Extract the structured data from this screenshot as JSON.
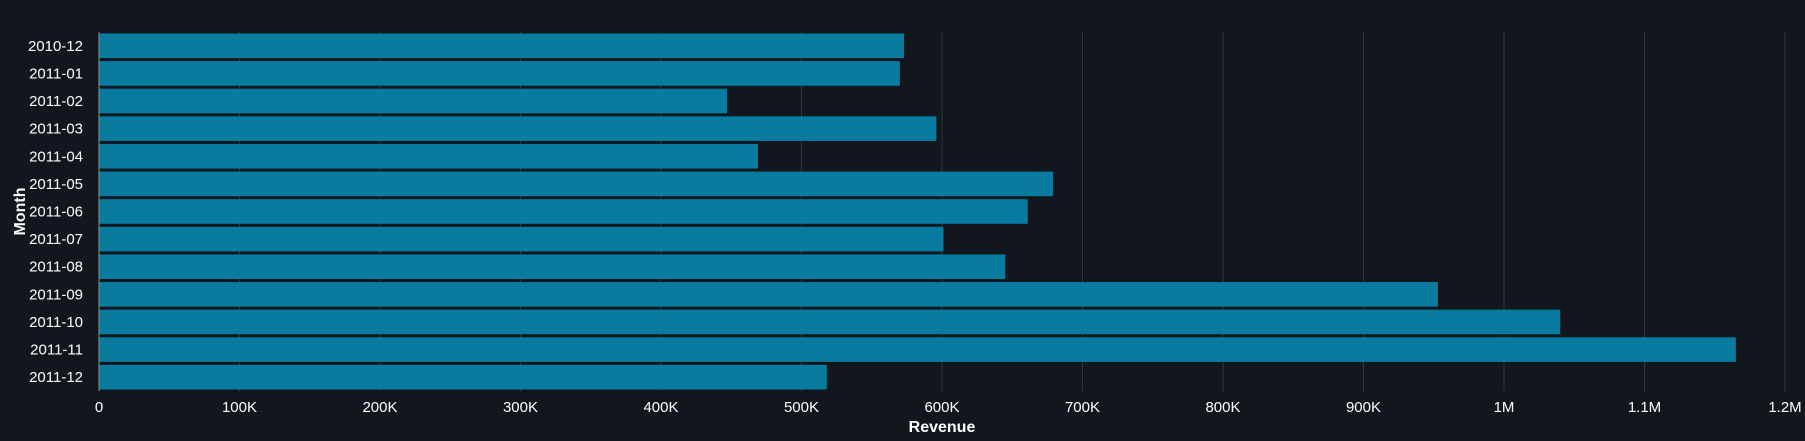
{
  "chart_data": {
    "type": "bar",
    "orientation": "horizontal",
    "categories": [
      "2010-12",
      "2011-01",
      "2011-02",
      "2011-03",
      "2011-04",
      "2011-05",
      "2011-06",
      "2011-07",
      "2011-08",
      "2011-09",
      "2011-10",
      "2011-11",
      "2011-12"
    ],
    "values": [
      573000,
      570000,
      447000,
      596000,
      469000,
      679000,
      661000,
      601000,
      645000,
      953000,
      1040000,
      1165000,
      518000
    ],
    "xlabel": "Revenue",
    "ylabel": "Month",
    "xlim": [
      0,
      1200000
    ],
    "x_ticks": [
      0,
      100000,
      200000,
      300000,
      400000,
      500000,
      600000,
      700000,
      800000,
      900000,
      1000000,
      1100000,
      1200000
    ],
    "x_tick_labels": [
      "0",
      "100K",
      "200K",
      "300K",
      "400K",
      "500K",
      "600K",
      "700K",
      "800K",
      "900K",
      "1M",
      "1.1M",
      "1.2M"
    ],
    "grid": "vertical",
    "colors": {
      "background": "#12171d",
      "bar": "#087b9f",
      "grid": "#30363c",
      "text": "#ffffff"
    }
  }
}
